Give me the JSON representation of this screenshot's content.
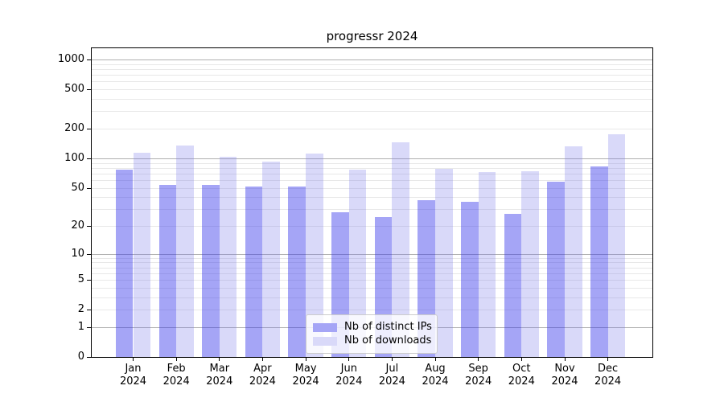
{
  "figure": {
    "title": "progressr 2024",
    "background": "#ffffff"
  },
  "chart_data": {
    "type": "bar",
    "title": "progressr 2024",
    "categories": [
      "Jan 2024",
      "Feb 2024",
      "Mar 2024",
      "Apr 2024",
      "May 2024",
      "Jun 2024",
      "Jul 2024",
      "Aug 2024",
      "Sep 2024",
      "Oct 2024",
      "Nov 2024",
      "Dec 2024"
    ],
    "month_labels": [
      "Jan",
      "Feb",
      "Mar",
      "Apr",
      "May",
      "Jun",
      "Jul",
      "Aug",
      "Sep",
      "Oct",
      "Nov",
      "Dec"
    ],
    "year_label": "2024",
    "series": [
      {
        "name": "Nb of distinct IPs",
        "color": "#a5a5f6",
        "fill": "rgba(50,50,235,0.44)",
        "values": [
          76,
          53,
          53,
          51,
          51,
          28,
          25,
          37,
          36,
          27,
          58,
          82
        ]
      },
      {
        "name": "Nb of downloads",
        "color": "#d9d9f9",
        "fill": "rgba(120,120,235,0.28)",
        "values": [
          114,
          136,
          104,
          93,
          112,
          76,
          146,
          78,
          72,
          74,
          133,
          175
        ]
      }
    ],
    "yscale": "log1p",
    "y_ticks": [
      0,
      1,
      2,
      5,
      10,
      20,
      50,
      100,
      200,
      500,
      1000
    ],
    "ylim": [
      0,
      1300
    ],
    "grid": true,
    "grid_major_values": [
      1,
      10,
      100,
      1000
    ],
    "grid_major_color": "#b0b0b0",
    "grid_minor_color": "#e8e8e8",
    "axis_color": "#000000",
    "text_color": "#000000",
    "legend_position": "lower center inside"
  }
}
